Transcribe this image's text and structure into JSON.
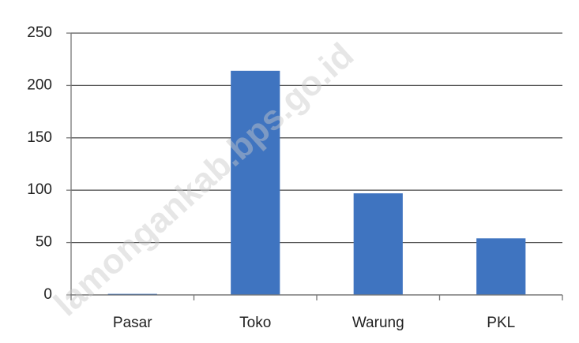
{
  "chart_data": {
    "type": "bar",
    "watermark": "lamongankab.bps.go.id",
    "categories": [
      "Pasar",
      "Toko",
      "Warung",
      "PKL"
    ],
    "values": [
      1,
      214,
      97,
      54
    ],
    "color": "#3f74c0",
    "ylim": [
      0,
      250
    ],
    "yticks": [
      0,
      50,
      100,
      150,
      200,
      250
    ],
    "grid": true
  }
}
